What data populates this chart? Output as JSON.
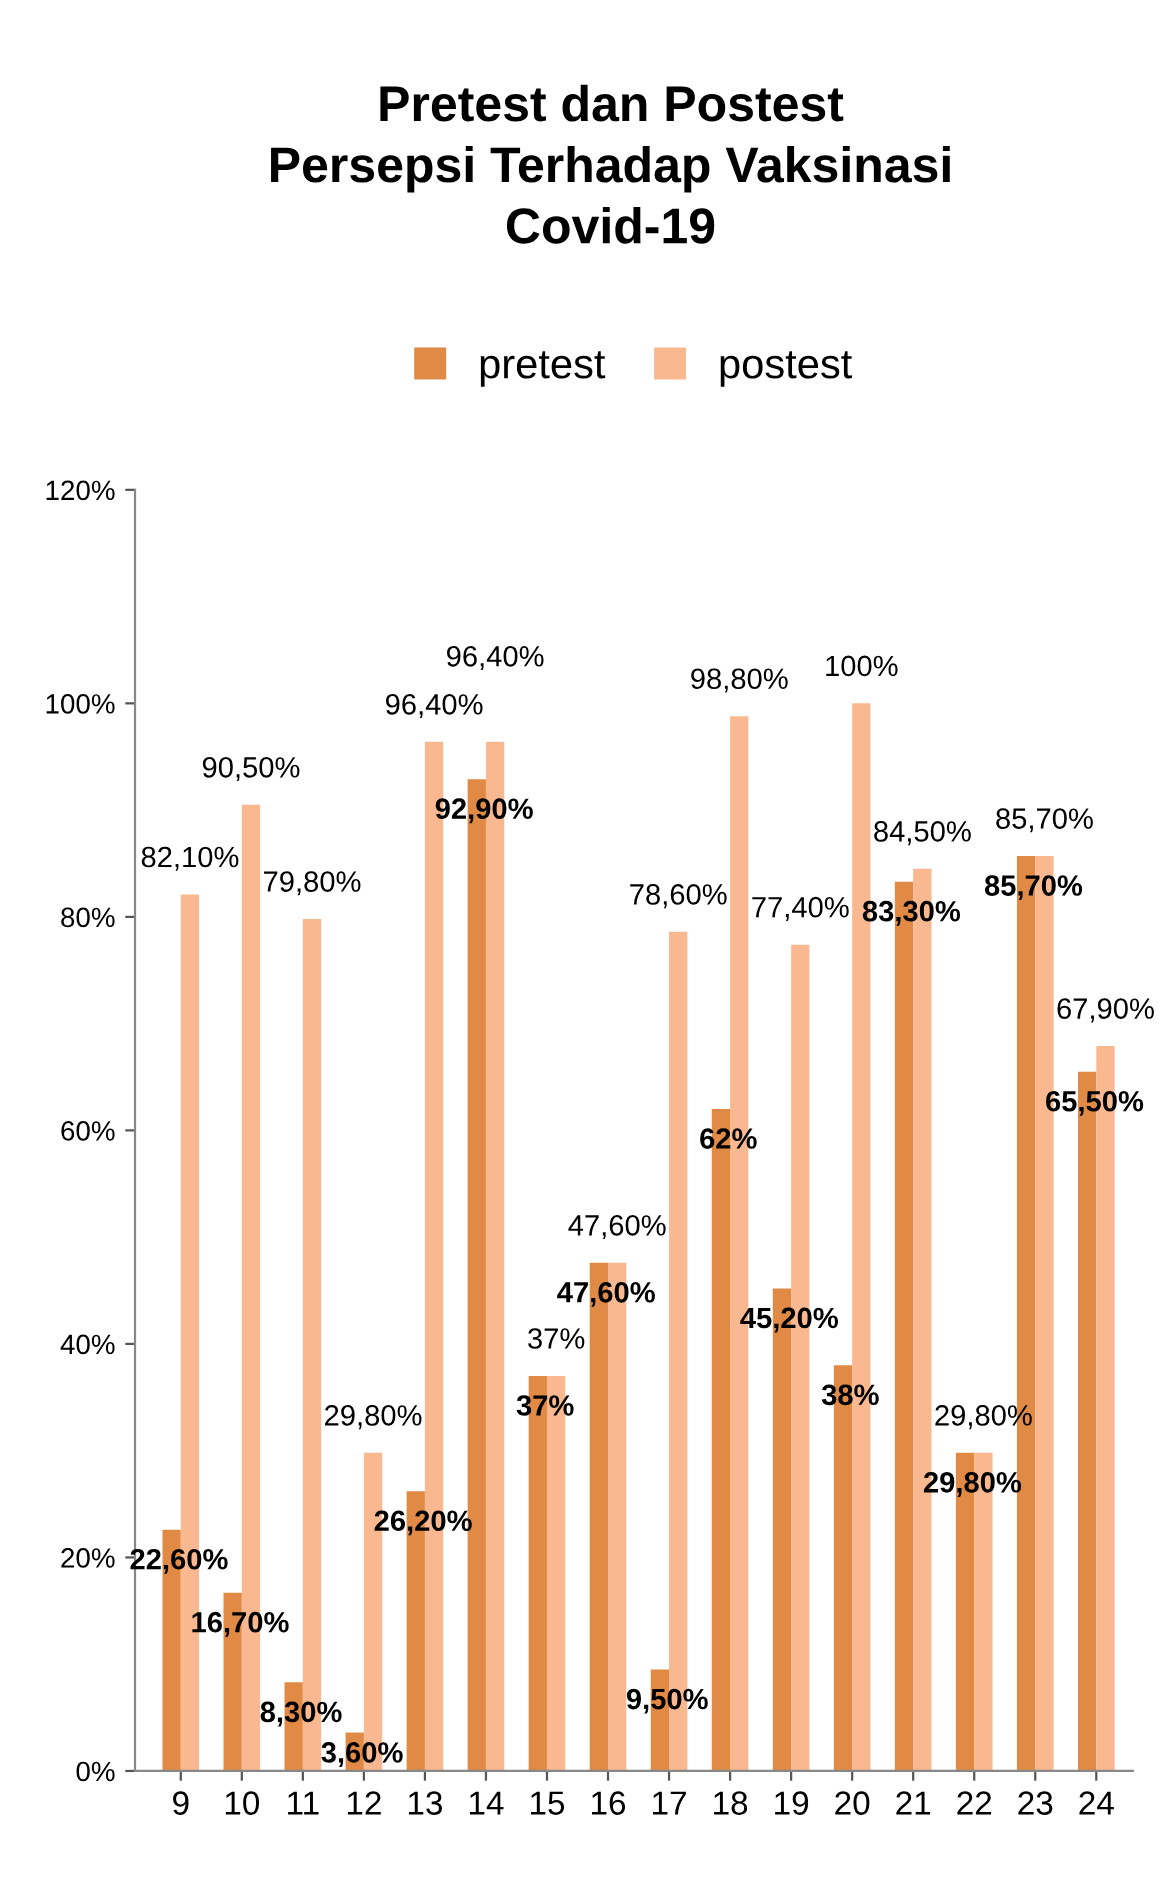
{
  "chart_data": {
    "type": "bar",
    "title": "Pretest dan Postest\nPersepsi Terhadap Vaksinasi\nCovid-19",
    "categories": [
      "9",
      "10",
      "11",
      "12",
      "13",
      "14",
      "15",
      "16",
      "17",
      "18",
      "19",
      "20",
      "21",
      "22",
      "23",
      "24"
    ],
    "series": [
      {
        "name": "pretest",
        "color": "#e08a45",
        "values": [
          22.6,
          16.7,
          8.3,
          3.6,
          26.2,
          92.9,
          37,
          47.6,
          9.5,
          62,
          45.2,
          38,
          83.3,
          29.8,
          85.7,
          65.5
        ],
        "value_labels": [
          "22,60%",
          "16,70%",
          "8,30%",
          "3,60%",
          "26,20%",
          "92,90%",
          "37%",
          "47,60%",
          "9,50%",
          "62%",
          "45,20%",
          "38%",
          "83,30%",
          "29,80%",
          "85,70%",
          "65,50%"
        ]
      },
      {
        "name": "postest",
        "color": "#f9b88f",
        "values": [
          82.1,
          90.5,
          79.8,
          29.8,
          96.4,
          96.4,
          37,
          47.6,
          78.6,
          98.8,
          77.4,
          100,
          84.5,
          29.8,
          85.7,
          67.9
        ],
        "value_labels": [
          "82,10%",
          "90,50%",
          "79,80%",
          "29,80%",
          "96,40%",
          "96,40%",
          "37%",
          "47,60%",
          "78,60%",
          "98,80%",
          "77,40%",
          "100%",
          "84,50%",
          "29,80%",
          "85,70%",
          "67,90%"
        ]
      }
    ],
    "ylim": [
      0,
      120
    ],
    "yticks": [
      {
        "value": 0,
        "label": "0%"
      },
      {
        "value": 20,
        "label": "20%"
      },
      {
        "value": 40,
        "label": "40%"
      },
      {
        "value": 60,
        "label": "60%"
      },
      {
        "value": 80,
        "label": "80%"
      },
      {
        "value": 100,
        "label": "100%"
      },
      {
        "value": 120,
        "label": "120%"
      }
    ],
    "legend": "top",
    "grid": false
  }
}
